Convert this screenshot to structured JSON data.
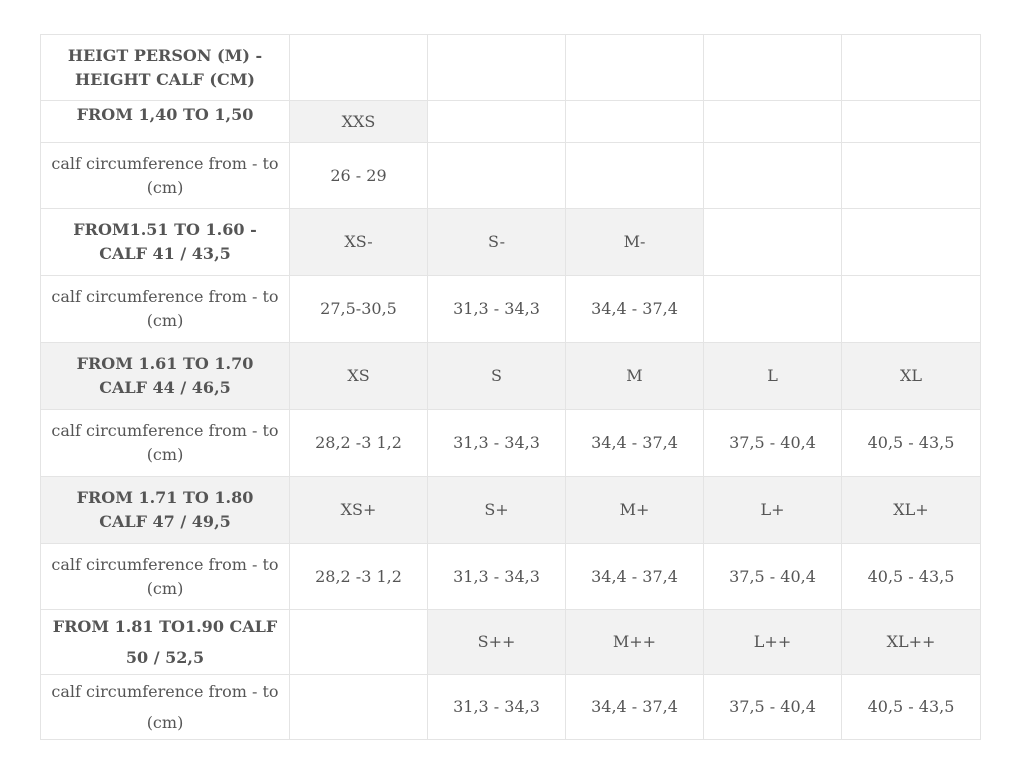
{
  "header": {
    "title_line1": "HEIGT PERSON (M) -",
    "title_line2": "HEIGHT CALF (CM)"
  },
  "calf_label_line1": "calf circumference from - to",
  "calf_label_line2": "(cm)",
  "groups": [
    {
      "height_line1": "FROM 1,40 TO 1,50",
      "height_line2": "",
      "sizes": [
        "XXS",
        "",
        "",
        "",
        ""
      ],
      "calf": [
        "26 - 29",
        "",
        "",
        "",
        ""
      ]
    },
    {
      "height_line1": "FROM1.51 TO 1.60 -",
      "height_line2": "CALF 41 / 43,5",
      "sizes": [
        "XS-",
        "S-",
        "M-",
        "",
        ""
      ],
      "calf": [
        "27,5-30,5",
        "31,3 - 34,3",
        "34,4 - 37,4",
        "",
        ""
      ]
    },
    {
      "height_line1": "FROM 1.61 TO 1.70",
      "height_line2": "CALF 44 / 46,5",
      "sizes": [
        "XS",
        "S",
        "M",
        "L",
        "XL"
      ],
      "calf": [
        "28,2 -3 1,2",
        "31,3 - 34,3",
        "34,4 - 37,4",
        "37,5 - 40,4",
        "40,5 - 43,5"
      ]
    },
    {
      "height_line1": "FROM 1.71 TO 1.80",
      "height_line2": "CALF 47 / 49,5",
      "sizes": [
        "XS+",
        "S+",
        "M+",
        "L+",
        "XL+"
      ],
      "calf": [
        "28,2 -3 1,2",
        "31,3 - 34,3",
        "34,4 - 37,4",
        "37,5 - 40,4",
        "40,5 - 43,5"
      ]
    },
    {
      "height_line1": "FROM 1.81 TO1.90 CALF",
      "height_line2": "50 / 52,5",
      "sizes": [
        "",
        "S++",
        "M++",
        "L++",
        "XL++"
      ],
      "calf": [
        "",
        "31,3 - 34,3",
        "34,4 - 37,4",
        "37,5 - 40,4",
        "40,5 - 43,5"
      ]
    }
  ]
}
